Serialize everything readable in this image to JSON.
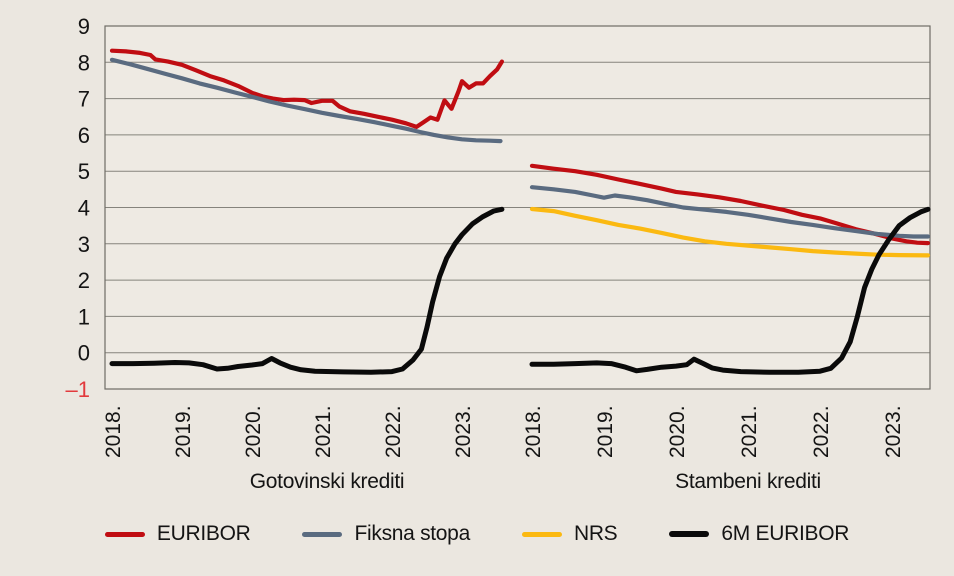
{
  "figure": {
    "background": "#ebe7e0",
    "plot_background": "#eeeae3",
    "grid_color": "#85837c",
    "frame_color": "#6e6c65",
    "text_color": "#141414",
    "negative_tick_color": "#e23a3d"
  },
  "chart_data": {
    "type": "line",
    "title": "",
    "xlabel": "",
    "ylabel": "",
    "ylim": [
      -1,
      9
    ],
    "yticks": [
      9,
      8,
      7,
      6,
      5,
      4,
      3,
      2,
      1,
      0,
      -1
    ],
    "grid": "horizontal",
    "legend_position": "bottom",
    "panels": [
      {
        "caption": "Gotovinski krediti",
        "xticks": [
          "2018.",
          "2019.",
          "2020.",
          "2021.",
          "2022.",
          "2023."
        ],
        "series": [
          {
            "name": "EURIBOR",
            "color": "#c00d12",
            "points": [
              [
                2018.0,
                8.32
              ],
              [
                2018.2,
                8.3
              ],
              [
                2018.4,
                8.26
              ],
              [
                2018.55,
                8.2
              ],
              [
                2018.62,
                8.08
              ],
              [
                2018.8,
                8.02
              ],
              [
                2019.0,
                7.93
              ],
              [
                2019.2,
                7.78
              ],
              [
                2019.4,
                7.62
              ],
              [
                2019.6,
                7.5
              ],
              [
                2019.8,
                7.35
              ],
              [
                2020.0,
                7.16
              ],
              [
                2020.15,
                7.06
              ],
              [
                2020.3,
                7.0
              ],
              [
                2020.45,
                6.96
              ],
              [
                2020.6,
                6.97
              ],
              [
                2020.75,
                6.96
              ],
              [
                2020.85,
                6.88
              ],
              [
                2021.0,
                6.94
              ],
              [
                2021.15,
                6.94
              ],
              [
                2021.25,
                6.78
              ],
              [
                2021.4,
                6.65
              ],
              [
                2021.6,
                6.58
              ],
              [
                2021.8,
                6.5
              ],
              [
                2022.0,
                6.42
              ],
              [
                2022.2,
                6.32
              ],
              [
                2022.35,
                6.22
              ],
              [
                2022.45,
                6.35
              ],
              [
                2022.55,
                6.48
              ],
              [
                2022.65,
                6.42
              ],
              [
                2022.75,
                6.95
              ],
              [
                2022.85,
                6.72
              ],
              [
                2022.95,
                7.2
              ],
              [
                2023.0,
                7.48
              ],
              [
                2023.1,
                7.3
              ],
              [
                2023.2,
                7.42
              ],
              [
                2023.3,
                7.42
              ],
              [
                2023.4,
                7.62
              ],
              [
                2023.5,
                7.8
              ],
              [
                2023.57,
                8.02
              ]
            ]
          },
          {
            "name": "Fiksna stopa",
            "color": "#5a6b80",
            "points": [
              [
                2018.0,
                8.07
              ],
              [
                2018.25,
                7.95
              ],
              [
                2018.5,
                7.82
              ],
              [
                2018.75,
                7.69
              ],
              [
                2019.0,
                7.56
              ],
              [
                2019.25,
                7.42
              ],
              [
                2019.5,
                7.3
              ],
              [
                2019.75,
                7.17
              ],
              [
                2020.0,
                7.05
              ],
              [
                2020.25,
                6.92
              ],
              [
                2020.5,
                6.81
              ],
              [
                2020.75,
                6.71
              ],
              [
                2021.0,
                6.61
              ],
              [
                2021.25,
                6.52
              ],
              [
                2021.5,
                6.44
              ],
              [
                2021.75,
                6.35
              ],
              [
                2022.0,
                6.25
              ],
              [
                2022.2,
                6.17
              ],
              [
                2022.4,
                6.08
              ],
              [
                2022.6,
                6.0
              ],
              [
                2022.8,
                5.93
              ],
              [
                2023.0,
                5.88
              ],
              [
                2023.2,
                5.85
              ],
              [
                2023.4,
                5.84
              ],
              [
                2023.55,
                5.83
              ]
            ]
          },
          {
            "name": "6M EURIBOR",
            "color": "#0a0a0a",
            "points": [
              [
                2018.0,
                -0.3
              ],
              [
                2018.3,
                -0.3
              ],
              [
                2018.6,
                -0.29
              ],
              [
                2018.9,
                -0.27
              ],
              [
                2019.1,
                -0.28
              ],
              [
                2019.3,
                -0.33
              ],
              [
                2019.5,
                -0.45
              ],
              [
                2019.65,
                -0.43
              ],
              [
                2019.8,
                -0.38
              ],
              [
                2020.0,
                -0.34
              ],
              [
                2020.15,
                -0.3
              ],
              [
                2020.28,
                -0.16
              ],
              [
                2020.4,
                -0.28
              ],
              [
                2020.55,
                -0.4
              ],
              [
                2020.7,
                -0.47
              ],
              [
                2020.9,
                -0.51
              ],
              [
                2021.3,
                -0.53
              ],
              [
                2021.7,
                -0.54
              ],
              [
                2022.0,
                -0.52
              ],
              [
                2022.15,
                -0.45
              ],
              [
                2022.3,
                -0.2
              ],
              [
                2022.42,
                0.1
              ],
              [
                2022.5,
                0.7
              ],
              [
                2022.58,
                1.4
              ],
              [
                2022.68,
                2.1
              ],
              [
                2022.78,
                2.6
              ],
              [
                2022.9,
                3.0
              ],
              [
                2023.0,
                3.25
              ],
              [
                2023.15,
                3.55
              ],
              [
                2023.3,
                3.75
              ],
              [
                2023.45,
                3.9
              ],
              [
                2023.57,
                3.95
              ]
            ]
          }
        ]
      },
      {
        "caption": "Stambeni krediti",
        "xticks": [
          "2018.",
          "2019.",
          "2020.",
          "2021.",
          "2022.",
          "2023."
        ],
        "series": [
          {
            "name": "EURIBOR",
            "color": "#c00d12",
            "points": [
              [
                2018.0,
                5.15
              ],
              [
                2018.3,
                5.07
              ],
              [
                2018.6,
                5.0
              ],
              [
                2018.9,
                4.9
              ],
              [
                2019.2,
                4.77
              ],
              [
                2019.5,
                4.65
              ],
              [
                2019.8,
                4.52
              ],
              [
                2020.0,
                4.43
              ],
              [
                2020.3,
                4.36
              ],
              [
                2020.6,
                4.28
              ],
              [
                2020.9,
                4.18
              ],
              [
                2021.2,
                4.05
              ],
              [
                2021.5,
                3.93
              ],
              [
                2021.75,
                3.8
              ],
              [
                2022.0,
                3.7
              ],
              [
                2022.25,
                3.55
              ],
              [
                2022.5,
                3.4
              ],
              [
                2022.75,
                3.28
              ],
              [
                2023.0,
                3.15
              ],
              [
                2023.2,
                3.07
              ],
              [
                2023.35,
                3.03
              ],
              [
                2023.5,
                3.02
              ]
            ]
          },
          {
            "name": "Fiksna stopa",
            "color": "#5a6b80",
            "points": [
              [
                2018.0,
                4.56
              ],
              [
                2018.3,
                4.5
              ],
              [
                2018.6,
                4.43
              ],
              [
                2018.85,
                4.33
              ],
              [
                2019.0,
                4.27
              ],
              [
                2019.15,
                4.33
              ],
              [
                2019.35,
                4.28
              ],
              [
                2019.6,
                4.2
              ],
              [
                2019.85,
                4.1
              ],
              [
                2020.1,
                4.0
              ],
              [
                2020.4,
                3.94
              ],
              [
                2020.7,
                3.88
              ],
              [
                2021.0,
                3.8
              ],
              [
                2021.3,
                3.7
              ],
              [
                2021.6,
                3.6
              ],
              [
                2021.9,
                3.52
              ],
              [
                2022.2,
                3.43
              ],
              [
                2022.5,
                3.35
              ],
              [
                2022.8,
                3.27
              ],
              [
                2023.1,
                3.22
              ],
              [
                2023.3,
                3.2
              ],
              [
                2023.5,
                3.2
              ]
            ]
          },
          {
            "name": "NRS",
            "color": "#fbb911",
            "points": [
              [
                2018.0,
                3.96
              ],
              [
                2018.3,
                3.9
              ],
              [
                2018.6,
                3.77
              ],
              [
                2018.9,
                3.65
              ],
              [
                2019.2,
                3.52
              ],
              [
                2019.5,
                3.42
              ],
              [
                2019.8,
                3.3
              ],
              [
                2020.1,
                3.17
              ],
              [
                2020.4,
                3.07
              ],
              [
                2020.7,
                3.0
              ],
              [
                2021.0,
                2.95
              ],
              [
                2021.3,
                2.9
              ],
              [
                2021.6,
                2.85
              ],
              [
                2021.9,
                2.8
              ],
              [
                2022.2,
                2.76
              ],
              [
                2022.5,
                2.73
              ],
              [
                2022.8,
                2.7
              ],
              [
                2023.1,
                2.69
              ],
              [
                2023.5,
                2.68
              ]
            ]
          },
          {
            "name": "6M EURIBOR",
            "color": "#0a0a0a",
            "points": [
              [
                2018.0,
                -0.32
              ],
              [
                2018.3,
                -0.32
              ],
              [
                2018.6,
                -0.3
              ],
              [
                2018.9,
                -0.28
              ],
              [
                2019.1,
                -0.3
              ],
              [
                2019.3,
                -0.4
              ],
              [
                2019.45,
                -0.5
              ],
              [
                2019.6,
                -0.46
              ],
              [
                2019.8,
                -0.4
              ],
              [
                2020.0,
                -0.37
              ],
              [
                2020.15,
                -0.33
              ],
              [
                2020.25,
                -0.18
              ],
              [
                2020.38,
                -0.3
              ],
              [
                2020.5,
                -0.42
              ],
              [
                2020.65,
                -0.48
              ],
              [
                2020.9,
                -0.52
              ],
              [
                2021.3,
                -0.54
              ],
              [
                2021.7,
                -0.54
              ],
              [
                2022.0,
                -0.51
              ],
              [
                2022.15,
                -0.43
              ],
              [
                2022.3,
                -0.15
              ],
              [
                2022.42,
                0.3
              ],
              [
                2022.52,
                1.0
              ],
              [
                2022.62,
                1.8
              ],
              [
                2022.72,
                2.3
              ],
              [
                2022.82,
                2.7
              ],
              [
                2022.95,
                3.1
              ],
              [
                2023.1,
                3.5
              ],
              [
                2023.25,
                3.72
              ],
              [
                2023.4,
                3.88
              ],
              [
                2023.5,
                3.95
              ]
            ]
          }
        ]
      }
    ],
    "legend": [
      {
        "label": "EURIBOR",
        "color": "#c00d12"
      },
      {
        "label": "Fiksna stopa",
        "color": "#5a6b80"
      },
      {
        "label": "NRS",
        "color": "#fbb911"
      },
      {
        "label": "6M EURIBOR",
        "color": "#0a0a0a"
      }
    ]
  }
}
